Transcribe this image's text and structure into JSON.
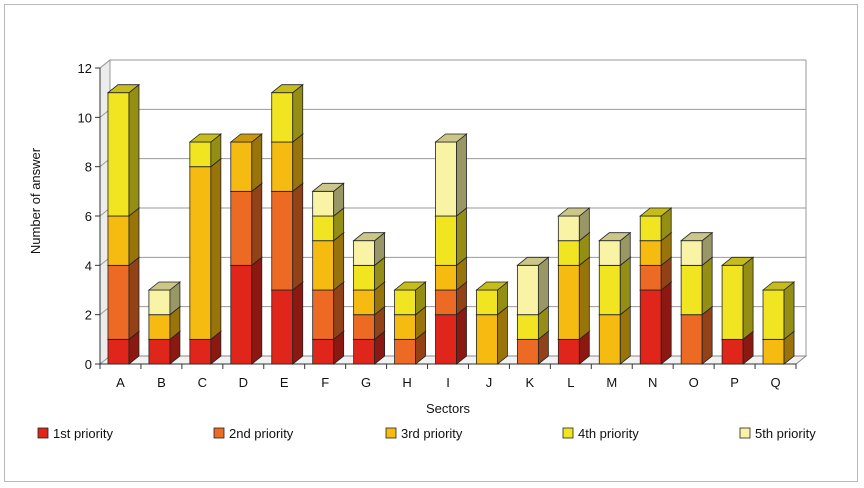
{
  "chart_data": {
    "type": "bar",
    "stacked": true,
    "three_d": true,
    "xlabel": "Sectors",
    "ylabel": "Number of answer",
    "ylim": [
      0,
      12
    ],
    "yticks": [
      0,
      2,
      4,
      6,
      8,
      10,
      12
    ],
    "grid": true,
    "legend_position": "bottom",
    "categories": [
      "A",
      "B",
      "C",
      "D",
      "E",
      "F",
      "G",
      "H",
      "I",
      "J",
      "K",
      "L",
      "M",
      "N",
      "O",
      "P",
      "Q"
    ],
    "series": [
      {
        "name": "1st priority",
        "color": "#e0261b",
        "values": [
          1,
          1,
          1,
          4,
          3,
          1,
          1,
          0,
          2,
          0,
          0,
          1,
          0,
          3,
          0,
          1,
          0
        ]
      },
      {
        "name": "2nd priority",
        "color": "#ec6a24",
        "values": [
          3,
          0,
          0,
          3,
          4,
          2,
          1,
          1,
          1,
          0,
          1,
          0,
          0,
          1,
          2,
          0,
          0
        ]
      },
      {
        "name": "3rd priority",
        "color": "#f6bb10",
        "values": [
          2,
          1,
          7,
          2,
          2,
          2,
          1,
          1,
          1,
          2,
          0,
          3,
          2,
          1,
          0,
          0,
          1
        ]
      },
      {
        "name": "4th priority",
        "color": "#f1e522",
        "values": [
          5,
          0,
          1,
          0,
          2,
          1,
          1,
          1,
          2,
          1,
          1,
          1,
          2,
          1,
          2,
          3,
          2
        ]
      },
      {
        "name": "5th priority",
        "color": "#f9f3a6",
        "values": [
          0,
          1,
          0,
          0,
          0,
          1,
          1,
          0,
          3,
          0,
          2,
          1,
          1,
          0,
          1,
          0,
          0
        ]
      }
    ]
  }
}
